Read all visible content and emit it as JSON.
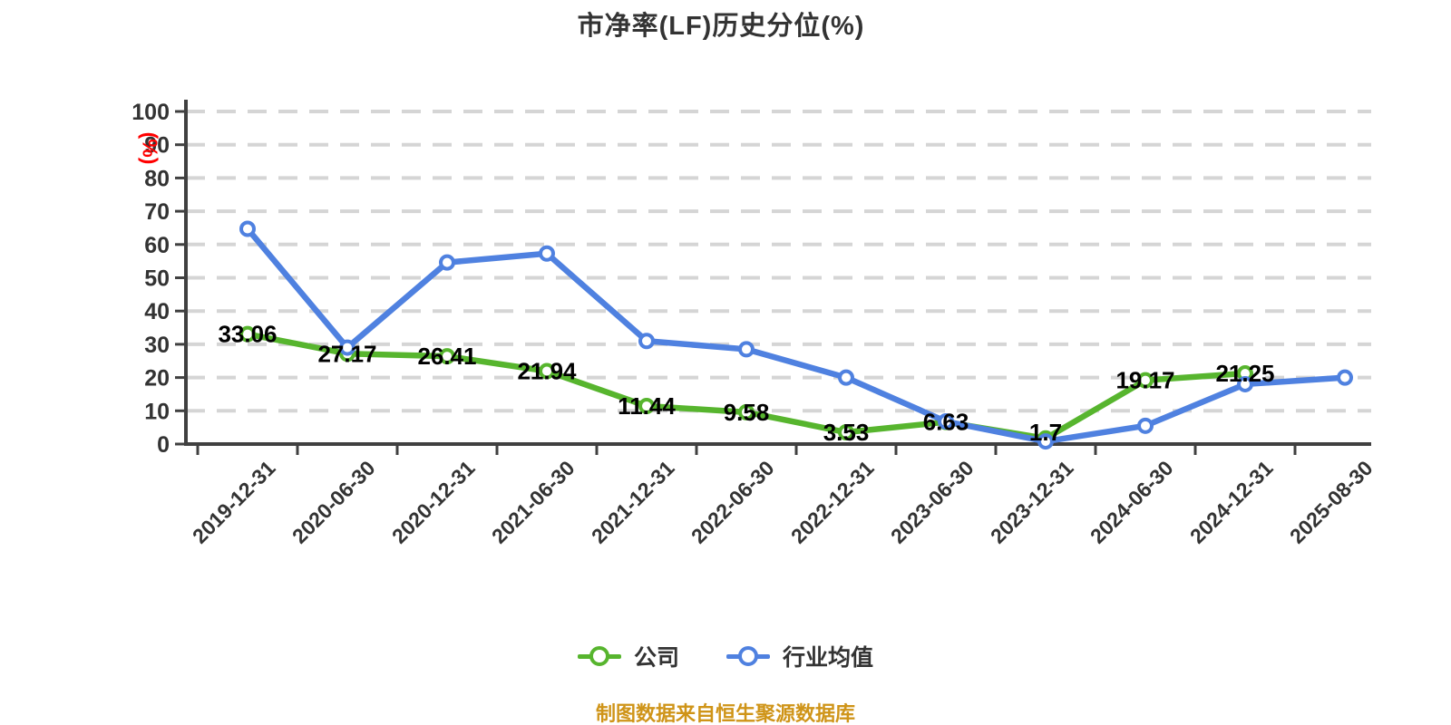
{
  "title": "市净率(LF)历史分位(%)",
  "caption": "制图数据来自恒生聚源数据库",
  "y_axis": {
    "unit": "(%)",
    "min": 0,
    "max": 100,
    "step": 10
  },
  "colors": {
    "company": "#57b52e",
    "industry": "#4f81e0",
    "grid": "#d5d5d5",
    "axis": "#404040",
    "tick_text": "#333333",
    "data_label": "#000000",
    "title": "#333333",
    "unit": "#ff0000",
    "caption": "#cf9418",
    "marker_fill": "#ffffff"
  },
  "chart_data": {
    "type": "line",
    "title": "市净率(LF)历史分位(%)",
    "xlabel": "",
    "ylabel": "(%)",
    "ylim": [
      0,
      100
    ],
    "y_ticks": [
      0,
      10,
      20,
      30,
      40,
      50,
      60,
      70,
      80,
      90,
      100
    ],
    "grid": "horizontal-dashed",
    "legend_position": "bottom",
    "categories": [
      "2019-12-31",
      "2020-06-30",
      "2020-12-31",
      "2021-06-30",
      "2021-12-31",
      "2022-06-30",
      "2022-12-31",
      "2023-06-30",
      "2023-12-31",
      "2024-06-30",
      "2024-12-31",
      "2025-08-30"
    ],
    "series": [
      {
        "name": "公司",
        "color": "#57b52e",
        "labels_shown": true,
        "values": [
          33.06,
          27.17,
          26.41,
          21.94,
          11.44,
          9.58,
          3.53,
          6.63,
          1.7,
          19.17,
          21.25,
          null
        ]
      },
      {
        "name": "行业均值",
        "color": "#4f81e0",
        "labels_shown": false,
        "values_estimated": true,
        "values": [
          64.7,
          29,
          54.6,
          57.3,
          31,
          28.5,
          20,
          6.8,
          0.8,
          5.5,
          18,
          20
        ]
      }
    ]
  }
}
